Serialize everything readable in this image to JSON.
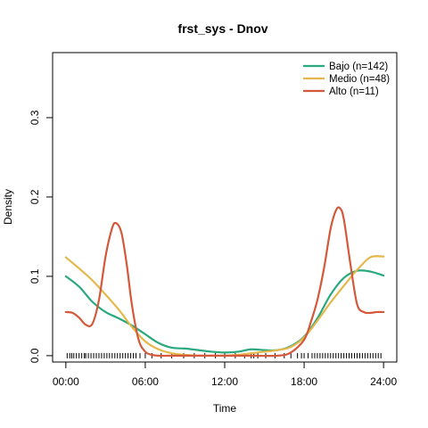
{
  "chart_data": {
    "type": "line",
    "title": "frst_sys - Dnov",
    "xlabel": "Time",
    "ylabel": "Density",
    "xlim": [
      -1,
      25
    ],
    "ylim": [
      -0.008,
      0.382
    ],
    "x_ticks": [
      {
        "value": 0,
        "label": "00:00"
      },
      {
        "value": 6,
        "label": "06:00"
      },
      {
        "value": 12,
        "label": "12:00"
      },
      {
        "value": 18,
        "label": "18:00"
      },
      {
        "value": 24,
        "label": "24:00"
      }
    ],
    "y_ticks": [
      {
        "value": 0.0,
        "label": "0.0"
      },
      {
        "value": 0.1,
        "label": "0.1"
      },
      {
        "value": 0.2,
        "label": "0.2"
      },
      {
        "value": 0.3,
        "label": "0.3"
      }
    ],
    "grid": false,
    "legend_position": "top-right",
    "series": [
      {
        "name": "Bajo (n=142)",
        "color": "#2aa87e",
        "points": [
          [
            0,
            0.1
          ],
          [
            1,
            0.087
          ],
          [
            2,
            0.068
          ],
          [
            3,
            0.055
          ],
          [
            4,
            0.047
          ],
          [
            5,
            0.038
          ],
          [
            6,
            0.027
          ],
          [
            7,
            0.016
          ],
          [
            8,
            0.01
          ],
          [
            9,
            0.009
          ],
          [
            10,
            0.007
          ],
          [
            11,
            0.005
          ],
          [
            12,
            0.004
          ],
          [
            13,
            0.005
          ],
          [
            14,
            0.008
          ],
          [
            15,
            0.007
          ],
          [
            16,
            0.007
          ],
          [
            17,
            0.012
          ],
          [
            18,
            0.024
          ],
          [
            19,
            0.047
          ],
          [
            20,
            0.077
          ],
          [
            21,
            0.098
          ],
          [
            22,
            0.107
          ],
          [
            23,
            0.106
          ],
          [
            24,
            0.101
          ]
        ]
      },
      {
        "name": "Medio (n=48)",
        "color": "#e4b84a",
        "points": [
          [
            0,
            0.124
          ],
          [
            1,
            0.11
          ],
          [
            2,
            0.095
          ],
          [
            3,
            0.077
          ],
          [
            4,
            0.058
          ],
          [
            5,
            0.036
          ],
          [
            6,
            0.018
          ],
          [
            7,
            0.008
          ],
          [
            8,
            0.003
          ],
          [
            9,
            0.001
          ],
          [
            10,
            0.0
          ],
          [
            11,
            0.0
          ],
          [
            12,
            0.0
          ],
          [
            13,
            0.001
          ],
          [
            14,
            0.003
          ],
          [
            15,
            0.005
          ],
          [
            16,
            0.007
          ],
          [
            17,
            0.011
          ],
          [
            18,
            0.023
          ],
          [
            19,
            0.044
          ],
          [
            20,
            0.067
          ],
          [
            21,
            0.088
          ],
          [
            22,
            0.108
          ],
          [
            23,
            0.124
          ],
          [
            24,
            0.125
          ]
        ]
      },
      {
        "name": "Alto (n=11)",
        "color": "#d4593b",
        "points": [
          [
            0,
            0.055
          ],
          [
            0.5,
            0.054
          ],
          [
            1,
            0.048
          ],
          [
            1.5,
            0.039
          ],
          [
            2,
            0.04
          ],
          [
            2.5,
            0.07
          ],
          [
            3,
            0.125
          ],
          [
            3.5,
            0.161
          ],
          [
            3.8,
            0.167
          ],
          [
            4.2,
            0.155
          ],
          [
            4.6,
            0.115
          ],
          [
            5,
            0.063
          ],
          [
            5.5,
            0.02
          ],
          [
            6,
            0.005
          ],
          [
            6.5,
            0.001
          ],
          [
            7,
            0.0
          ],
          [
            8,
            0.0
          ],
          [
            10,
            0.0
          ],
          [
            12,
            0.0
          ],
          [
            14,
            0.0
          ],
          [
            16,
            0.0
          ],
          [
            17,
            0.004
          ],
          [
            18,
            0.02
          ],
          [
            18.5,
            0.042
          ],
          [
            19,
            0.07
          ],
          [
            19.5,
            0.11
          ],
          [
            20,
            0.16
          ],
          [
            20.4,
            0.183
          ],
          [
            20.7,
            0.186
          ],
          [
            21,
            0.172
          ],
          [
            21.5,
            0.115
          ],
          [
            22,
            0.065
          ],
          [
            22.5,
            0.055
          ],
          [
            23,
            0.054
          ],
          [
            23.5,
            0.055
          ],
          [
            24,
            0.055
          ]
        ]
      }
    ],
    "rug": [
      0.1,
      0.3,
      0.45,
      0.6,
      0.8,
      1.0,
      1.2,
      1.4,
      1.5,
      1.7,
      1.9,
      2.1,
      2.3,
      2.5,
      2.7,
      2.9,
      3.1,
      3.3,
      3.5,
      3.7,
      3.9,
      4.1,
      4.3,
      4.5,
      4.7,
      4.9,
      5.1,
      5.3,
      5.6,
      6.0,
      6.5,
      7.2,
      8.0,
      8.9,
      9.7,
      10.5,
      11.3,
      12.0,
      12.8,
      13.5,
      14.0,
      14.2,
      14.5,
      15.1,
      15.8,
      16.5,
      17.0,
      17.5,
      17.8,
      18.0,
      18.3,
      18.6,
      18.8,
      19.0,
      19.2,
      19.4,
      19.6,
      19.8,
      20.0,
      20.2,
      20.4,
      20.6,
      20.8,
      21.0,
      21.2,
      21.4,
      21.6,
      21.8,
      22.0,
      22.2,
      22.4,
      22.6,
      22.8,
      23.0,
      23.2,
      23.4,
      23.6,
      23.8
    ]
  }
}
